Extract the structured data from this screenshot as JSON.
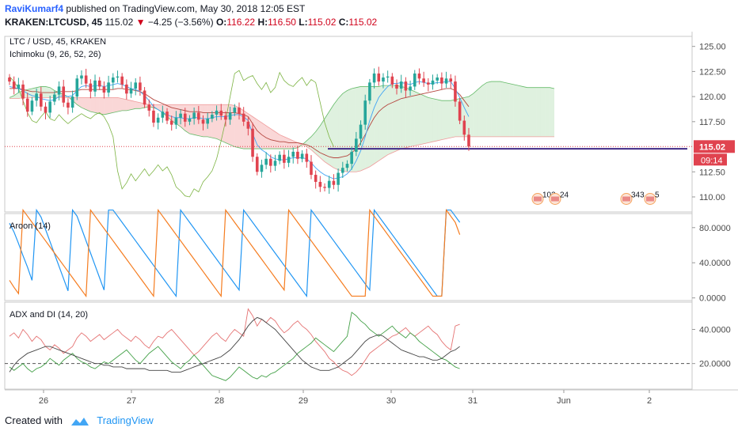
{
  "header": {
    "author": "RaviKumarf4",
    "published": "published on TradingView.com, May 30, 2018 12:05 EST",
    "symbol": "KRAKEN:LTCUSD, 45",
    "last": "115.02",
    "change": "−4.25 (−3.56%)",
    "o_label": "O:",
    "o_val": "116.22",
    "h_label": "H:",
    "h_val": "116.50",
    "l_label": "L:",
    "l_val": "115.02",
    "c_label": "C:",
    "c_val": "115.02"
  },
  "footer": {
    "created_with": "Created with",
    "brand": "TradingView"
  },
  "colors": {
    "up": "#26a69a",
    "down": "#e0434f",
    "blue_line": "#2196f3",
    "orange": "#f57c1f",
    "pink": "#e57373",
    "green": "#43a047",
    "dark": "#444444",
    "kumo_bull": "rgba(76,175,80,0.18)",
    "kumo_bear": "rgba(229,57,53,0.2)",
    "hline": "#3f2a86"
  },
  "chart_data": [
    {
      "type": "candlestick",
      "title": "LTC / USD, 45, KRAKEN",
      "indicator": "Ichimoku (9, 26, 52, 26)",
      "ylim": [
        108.5,
        126
      ],
      "y_ticks": [
        "125.00",
        "122.50",
        "120.00",
        "117.50",
        "115.00",
        "112.50",
        "110.00"
      ],
      "x_ticks": [
        "26",
        "27",
        "28",
        "29",
        "30",
        "31",
        "Jun",
        "2"
      ],
      "price_label": "115.02",
      "countdown_label": "09:14",
      "horizontal_line": 114.8,
      "events": [
        "103",
        "24",
        "343",
        "5"
      ],
      "closes": [
        121.5,
        120.8,
        121.2,
        119.8,
        118.5,
        119.6,
        120.3,
        119.0,
        118.4,
        119.5,
        120.2,
        121.0,
        119.4,
        118.9,
        120.0,
        121.8,
        122.1,
        121.3,
        120.5,
        121.6,
        121.0,
        120.4,
        121.4,
        121.9,
        122.0,
        121.2,
        120.3,
        120.8,
        121.4,
        120.6,
        119.2,
        118.6,
        117.4,
        117.9,
        118.5,
        117.6,
        117.2,
        117.9,
        118.3,
        117.5,
        117.8,
        118.4,
        117.7,
        117.3,
        117.8,
        118.2,
        118.6,
        118.1,
        117.7,
        118.4,
        118.9,
        118.3,
        117.5,
        116.8,
        114.0,
        112.5,
        113.2,
        113.8,
        113.1,
        113.6,
        114.2,
        113.4,
        114.0,
        114.5,
        113.8,
        114.3,
        113.5,
        112.2,
        111.5,
        111.0,
        110.9,
        111.6,
        111.2,
        112.4,
        112.9,
        113.3,
        114.5,
        115.8,
        117.2,
        119.6,
        121.4,
        122.3,
        121.5,
        121.9,
        122.0,
        121.2,
        120.8,
        121.5,
        120.6,
        121.0,
        122.3,
        121.8,
        121.4,
        121.2,
        121.6,
        121.9,
        121.3,
        121.8,
        121.5,
        119.5,
        117.6,
        116.2,
        115.02
      ],
      "tenkan": [
        121.0,
        120.9,
        120.8,
        120.6,
        120.3,
        120.1,
        120.0,
        119.8,
        119.7,
        119.6,
        119.7,
        120.0,
        120.1,
        120.0,
        120.1,
        120.6,
        121.0,
        121.1,
        121.0,
        121.1,
        121.1,
        121.0,
        121.1,
        121.2,
        121.3,
        121.2,
        121.0,
        120.8,
        120.7,
        120.5,
        120.1,
        119.6,
        119.0,
        118.7,
        118.4,
        118.2,
        118.0,
        117.9,
        117.9,
        117.8,
        117.8,
        117.9,
        117.9,
        117.8,
        117.8,
        117.9,
        118.0,
        118.0,
        118.0,
        118.1,
        118.2,
        118.2,
        118.0,
        117.6,
        116.3,
        115.2,
        114.7,
        114.4,
        114.0,
        113.8,
        113.7,
        113.7,
        113.8,
        113.9,
        113.9,
        113.9,
        113.8,
        113.4,
        112.9,
        112.5,
        112.2,
        112.0,
        111.8,
        111.9,
        112.0,
        112.3,
        112.8,
        113.6,
        114.6,
        116.0,
        117.6,
        118.9,
        119.9,
        120.5,
        121.0,
        121.3,
        121.3,
        121.4,
        121.3,
        121.2,
        121.4,
        121.5,
        121.4,
        121.3,
        121.3,
        121.4,
        121.4,
        121.5,
        121.5,
        120.8,
        119.9,
        118.9,
        118.0
      ],
      "kijun": [
        120.8,
        120.8,
        120.8,
        120.7,
        120.6,
        120.5,
        120.5,
        120.4,
        120.4,
        120.4,
        120.4,
        120.5,
        120.5,
        120.5,
        120.5,
        120.6,
        120.7,
        120.7,
        120.7,
        120.7,
        120.7,
        120.7,
        120.7,
        120.7,
        120.8,
        120.8,
        120.7,
        120.7,
        120.6,
        120.5,
        120.3,
        120.0,
        119.7,
        119.5,
        119.3,
        119.1,
        118.9,
        118.8,
        118.7,
        118.6,
        118.5,
        118.5,
        118.5,
        118.4,
        118.4,
        118.4,
        118.4,
        118.4,
        118.4,
        118.4,
        118.4,
        118.3,
        118.2,
        118.0,
        117.3,
        116.6,
        116.2,
        115.9,
        115.7,
        115.6,
        115.5,
        115.5,
        115.4,
        115.4,
        115.4,
        115.3,
        115.2,
        115.0,
        114.7,
        114.4,
        114.2,
        114.0,
        113.9,
        113.9,
        114.0,
        114.1,
        114.4,
        114.8,
        115.4,
        116.2,
        117.1,
        117.9,
        118.5,
        118.9,
        119.2,
        119.4,
        119.6,
        119.8,
        119.9,
        120.0,
        120.1,
        120.2,
        120.3,
        120.4,
        120.5,
        120.6,
        120.7,
        120.8,
        120.8,
        120.6,
        120.2,
        119.6,
        119.0
      ],
      "chikou": [
        122.0,
        121.5,
        120.8,
        119.6,
        118.4,
        117.6,
        117.4,
        118.0,
        118.5,
        117.8,
        117.6,
        118.2,
        117.7,
        117.3,
        117.7,
        118.0,
        118.3,
        118.0,
        117.8,
        118.2,
        118.4,
        118.0,
        117.2,
        116.0,
        112.6,
        110.8,
        111.4,
        112.3,
        111.6,
        112.2,
        112.8,
        112.1,
        112.6,
        113.2,
        112.6,
        113.0,
        112.2,
        111.0,
        110.6,
        110.1,
        110.0,
        110.8,
        110.5,
        111.5,
        112.0,
        112.6,
        113.8,
        115.6,
        117.6,
        120.0,
        122.3,
        122.6,
        121.6,
        121.9,
        122.1,
        121.3,
        120.7,
        121.4,
        120.4,
        120.9,
        122.4,
        121.6,
        121.2,
        121.0,
        121.5,
        121.9,
        121.1,
        121.7,
        121.4,
        119.4,
        117.4,
        116.0,
        115.0
      ],
      "cloud_span_a": [
        119.9,
        120.1,
        120.4,
        120.6,
        120.7,
        120.8,
        120.9,
        121.0,
        121.0,
        120.9,
        120.6,
        120.4,
        120.2,
        120.0,
        119.6,
        119.2,
        118.9,
        118.7,
        118.5,
        118.4,
        118.3,
        118.2,
        118.3,
        118.4,
        118.5,
        118.6,
        118.6,
        118.7,
        118.8,
        118.8,
        118.9,
        119.0,
        118.9,
        118.7,
        118.4,
        118.0,
        117.6,
        117.3,
        117.0,
        116.6,
        116.3,
        116.2,
        116.1,
        116.0,
        116.0,
        115.9,
        115.8,
        115.6,
        115.4,
        115.2,
        115.0,
        114.9,
        114.8,
        114.8,
        114.8,
        114.8,
        114.8,
        114.8,
        114.8,
        114.8,
        114.8,
        114.8,
        114.8,
        114.8,
        114.9,
        115.2,
        115.6,
        116.0,
        116.5,
        117.1,
        117.8,
        118.5,
        119.2,
        119.8,
        120.3,
        120.6,
        120.8,
        120.9,
        121.0,
        121.0,
        121.0,
        121.0,
        121.0,
        121.1,
        121.1,
        121.1,
        121.1,
        121.0,
        120.9,
        120.7,
        120.5,
        120.3,
        120.1,
        119.9,
        119.8,
        119.7,
        119.6,
        119.6,
        119.6,
        119.7,
        119.8,
        119.9,
        120.0,
        120.3,
        120.7,
        121.1,
        121.4,
        121.5,
        121.5,
        121.5,
        121.4,
        121.3,
        121.2,
        121.1,
        121.0,
        120.9,
        120.9,
        120.9,
        120.9,
        120.9,
        120.9,
        120.8
      ],
      "cloud_span_b": [
        119.8,
        119.8,
        119.8,
        119.9,
        119.9,
        119.9,
        119.9,
        119.9,
        119.9,
        119.9,
        119.9,
        119.9,
        119.9,
        119.9,
        119.9,
        119.9,
        119.9,
        119.9,
        119.9,
        119.9,
        119.9,
        119.9,
        119.9,
        119.9,
        119.9,
        119.8,
        119.7,
        119.6,
        119.5,
        119.4,
        119.3,
        119.2,
        119.2,
        119.2,
        119.2,
        119.2,
        119.2,
        119.2,
        119.2,
        119.2,
        119.2,
        119.2,
        119.2,
        119.2,
        119.2,
        119.2,
        119.2,
        119.2,
        119.2,
        119.2,
        119.1,
        118.9,
        118.6,
        118.3,
        118.0,
        117.7,
        117.4,
        117.1,
        116.8,
        116.5,
        116.2,
        116.0,
        115.8,
        115.6,
        115.4,
        115.2,
        115.0,
        114.7,
        114.3,
        113.9,
        113.5,
        113.2,
        112.9,
        112.7,
        112.6,
        112.5,
        112.5,
        112.5,
        112.6,
        112.8,
        113.0,
        113.3,
        113.6,
        113.9,
        114.2,
        114.4,
        114.6,
        114.8,
        114.9,
        115.0,
        115.1,
        115.2,
        115.3,
        115.4,
        115.5,
        115.6,
        115.7,
        115.8,
        115.9,
        116.0,
        116.0,
        116.0,
        116.0,
        116.0,
        116.0,
        116.0,
        116.0,
        116.0,
        116.0,
        116.0,
        116.0,
        116.0,
        116.0,
        116.0,
        116.0,
        116.0,
        116.0,
        116.0,
        116.0,
        116.0,
        116.0,
        116.0
      ]
    },
    {
      "type": "line",
      "title": "Aroon (14)",
      "ylim": [
        -3,
        96
      ],
      "y_ticks": [
        "80.0000",
        "40.0000",
        "0.0000"
      ],
      "series": [
        {
          "color": "#2196f3",
          "values": [
            85,
            75,
            62,
            48,
            35,
            20,
            100,
            92,
            78,
            64,
            50,
            36,
            22,
            8,
            100,
            93,
            79,
            65,
            51,
            37,
            23,
            9,
            100,
            100,
            93,
            86,
            79,
            72,
            65,
            58,
            51,
            44,
            37,
            30,
            23,
            16,
            9,
            2,
            100,
            93,
            86,
            79,
            72,
            65,
            58,
            51,
            44,
            37,
            30,
            23,
            16,
            9,
            100,
            93,
            86,
            79,
            72,
            65,
            58,
            51,
            44,
            37,
            30,
            23,
            16,
            9,
            2,
            100,
            93,
            86,
            79,
            72,
            65,
            58,
            51,
            44,
            37,
            30,
            23,
            16,
            9,
            100,
            93,
            86,
            79,
            72,
            65,
            58,
            51,
            44,
            37,
            30,
            23,
            16,
            9,
            2,
            2,
            100,
            100,
            93,
            86
          ]
        },
        {
          "color": "#f57c1f",
          "values": [
            20,
            12,
            5,
            100,
            93,
            86,
            79,
            72,
            65,
            58,
            51,
            44,
            37,
            30,
            23,
            16,
            9,
            2,
            100,
            93,
            86,
            79,
            72,
            65,
            58,
            51,
            44,
            37,
            30,
            23,
            16,
            9,
            2,
            100,
            93,
            86,
            79,
            72,
            65,
            58,
            51,
            44,
            37,
            30,
            23,
            16,
            9,
            2,
            100,
            93,
            86,
            79,
            72,
            65,
            58,
            51,
            44,
            37,
            30,
            23,
            16,
            9,
            100,
            93,
            86,
            79,
            72,
            65,
            58,
            51,
            44,
            37,
            30,
            23,
            16,
            9,
            2,
            2,
            2,
            2,
            100,
            93,
            86,
            79,
            72,
            65,
            58,
            51,
            44,
            37,
            30,
            23,
            16,
            9,
            2,
            2,
            2,
            100,
            93,
            86,
            72
          ]
        }
      ]
    },
    {
      "type": "line",
      "title": "ADX and DI (14, 20)",
      "ylim": [
        5,
        56
      ],
      "y_ticks": [
        "40.0000",
        "20.0000"
      ],
      "threshold": 20,
      "series": [
        {
          "color": "#e57373",
          "values": [
            36,
            38,
            35,
            40,
            37,
            33,
            36,
            34,
            30,
            28,
            31,
            29,
            26,
            28,
            30,
            35,
            38,
            36,
            33,
            35,
            37,
            34,
            36,
            38,
            40,
            37,
            35,
            33,
            36,
            34,
            31,
            29,
            33,
            36,
            35,
            38,
            40,
            37,
            34,
            31,
            28,
            25,
            27,
            30,
            33,
            36,
            38,
            35,
            33,
            37,
            40,
            38,
            36,
            52,
            48,
            42,
            46,
            44,
            47,
            45,
            41,
            38,
            40,
            43,
            45,
            42,
            40,
            37,
            33,
            30,
            27,
            23,
            21,
            18,
            16,
            15,
            13,
            15,
            18,
            22,
            26,
            28,
            30,
            32,
            34,
            36,
            37,
            39,
            41,
            38,
            36,
            38,
            40,
            42,
            39,
            37,
            33,
            30,
            28,
            42,
            43
          ]
        },
        {
          "color": "#43a047",
          "values": [
            18,
            16,
            18,
            20,
            17,
            15,
            17,
            18,
            20,
            23,
            21,
            19,
            22,
            24,
            26,
            23,
            21,
            20,
            18,
            17,
            19,
            21,
            20,
            22,
            24,
            26,
            28,
            25,
            22,
            20,
            23,
            26,
            28,
            30,
            27,
            24,
            21,
            19,
            17,
            20,
            22,
            25,
            22,
            19,
            16,
            13,
            12,
            11,
            10,
            12,
            15,
            18,
            16,
            14,
            12,
            11,
            13,
            12,
            14,
            15,
            17,
            19,
            21,
            23,
            26,
            28,
            30,
            32,
            35,
            33,
            31,
            29,
            27,
            30,
            33,
            36,
            50,
            48,
            45,
            43,
            40,
            38,
            36,
            38,
            40,
            42,
            39,
            37,
            35,
            38,
            36,
            33,
            31,
            29,
            27,
            25,
            23,
            22,
            20,
            18,
            17
          ]
        },
        {
          "color": "#444444",
          "values": [
            15,
            19,
            22,
            24,
            26,
            27,
            28,
            29,
            30,
            30,
            29,
            28,
            27,
            26,
            25,
            24,
            23,
            22,
            21,
            20,
            20,
            19,
            19,
            18,
            18,
            18,
            17,
            17,
            17,
            17,
            17,
            16,
            16,
            16,
            16,
            16,
            15,
            15,
            15,
            16,
            17,
            18,
            19,
            20,
            21,
            22,
            23,
            24,
            26,
            28,
            31,
            34,
            38,
            42,
            45,
            47,
            46,
            44,
            42,
            40,
            37,
            34,
            31,
            28,
            25,
            22,
            20,
            18,
            17,
            16,
            16,
            16,
            17,
            18,
            20,
            22,
            24,
            27,
            30,
            33,
            35,
            36,
            37,
            36,
            34,
            32,
            30,
            28,
            27,
            26,
            25,
            24,
            24,
            23,
            22,
            22,
            23,
            25,
            27,
            28,
            30
          ]
        }
      ]
    }
  ]
}
